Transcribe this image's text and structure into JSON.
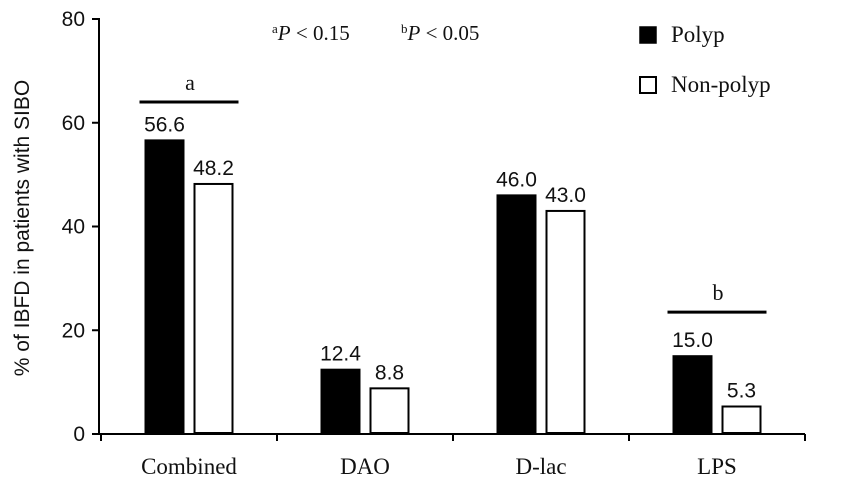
{
  "chart_data": {
    "type": "bar",
    "title": "",
    "xlabel": "",
    "ylabel": "% of IBFD in patients with SIBO",
    "ylim": [
      0,
      80
    ],
    "yticks": [
      0,
      20,
      40,
      60,
      80
    ],
    "categories": [
      "Combined",
      "DAO",
      "D-lac",
      "LPS"
    ],
    "series": [
      {
        "name": "Polyp",
        "color": "#000000",
        "fill": "#000000",
        "values": [
          56.6,
          12.4,
          46.0,
          15.0
        ],
        "labels": [
          "56.6",
          "12.4",
          "46.0",
          "15.0"
        ]
      },
      {
        "name": "Non-polyp",
        "color": "#000000",
        "fill": "#ffffff",
        "values": [
          48.2,
          8.8,
          43.0,
          5.3
        ],
        "labels": [
          "48.2",
          "8.8",
          "43.0",
          "5.3"
        ]
      }
    ],
    "significance": [
      {
        "category": "Combined",
        "letter": "a",
        "value": 64
      },
      {
        "category": "LPS",
        "letter": "b",
        "value": 23.5
      }
    ],
    "notes": [
      {
        "sup": "a",
        "symbol": "P",
        "text": " < 0.15"
      },
      {
        "sup": "b",
        "symbol": "P",
        "text": " < 0.05"
      }
    ],
    "legend": {
      "position": "top-right",
      "entries": [
        "Polyp",
        "Non-polyp"
      ]
    }
  }
}
